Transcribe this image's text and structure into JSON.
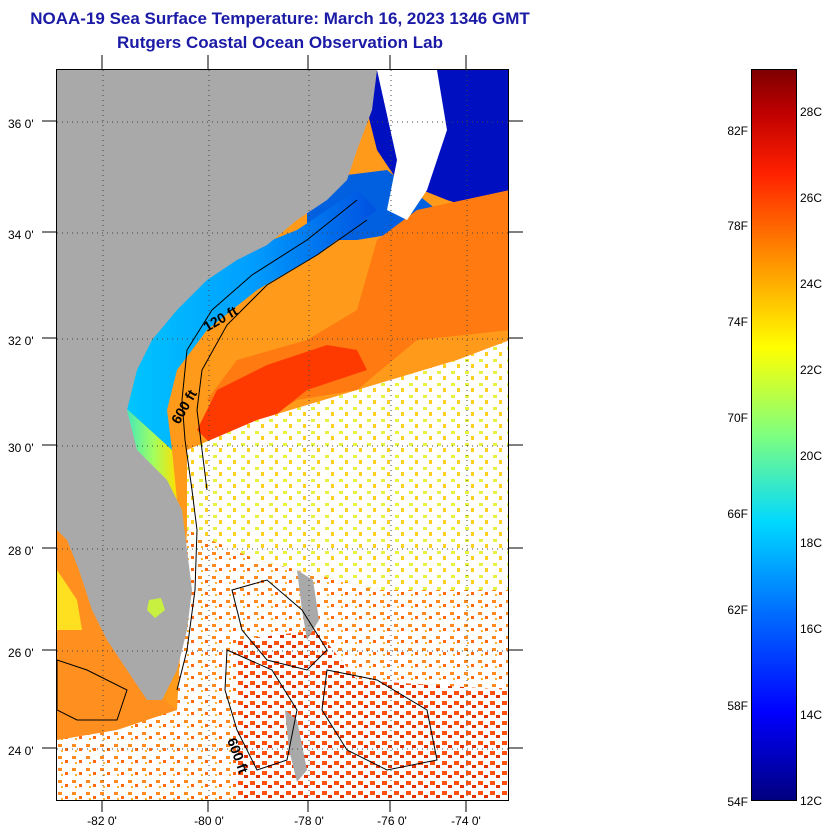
{
  "header": {
    "title": "NOAA-19 Sea Surface Temperature:  March 16, 2023 1346 GMT",
    "subtitle": "Rutgers Coastal Ocean Observation Lab"
  },
  "map": {
    "lat_labels": [
      "36 0'",
      "34 0'",
      "32 0'",
      "30 0'",
      "28 0'",
      "26 0'",
      "24 0'"
    ],
    "lon_labels": [
      "-82 0'",
      "-80 0'",
      "-78 0'",
      "-76 0'",
      "-74 0'"
    ],
    "contour_labels": [
      "120 ft",
      "600 ft",
      "600 ft"
    ],
    "colors": {
      "land": "#a9a9a9",
      "cloud": "#ffffff",
      "contour": "#000000"
    }
  },
  "colorbar": {
    "fahrenheit_labels": [
      "82F",
      "78F",
      "74F",
      "70F",
      "66F",
      "62F",
      "58F",
      "54F"
    ],
    "celsius_labels": [
      "28C",
      "26C",
      "24C",
      "22C",
      "20C",
      "18C",
      "16C",
      "14C",
      "12C"
    ]
  }
}
